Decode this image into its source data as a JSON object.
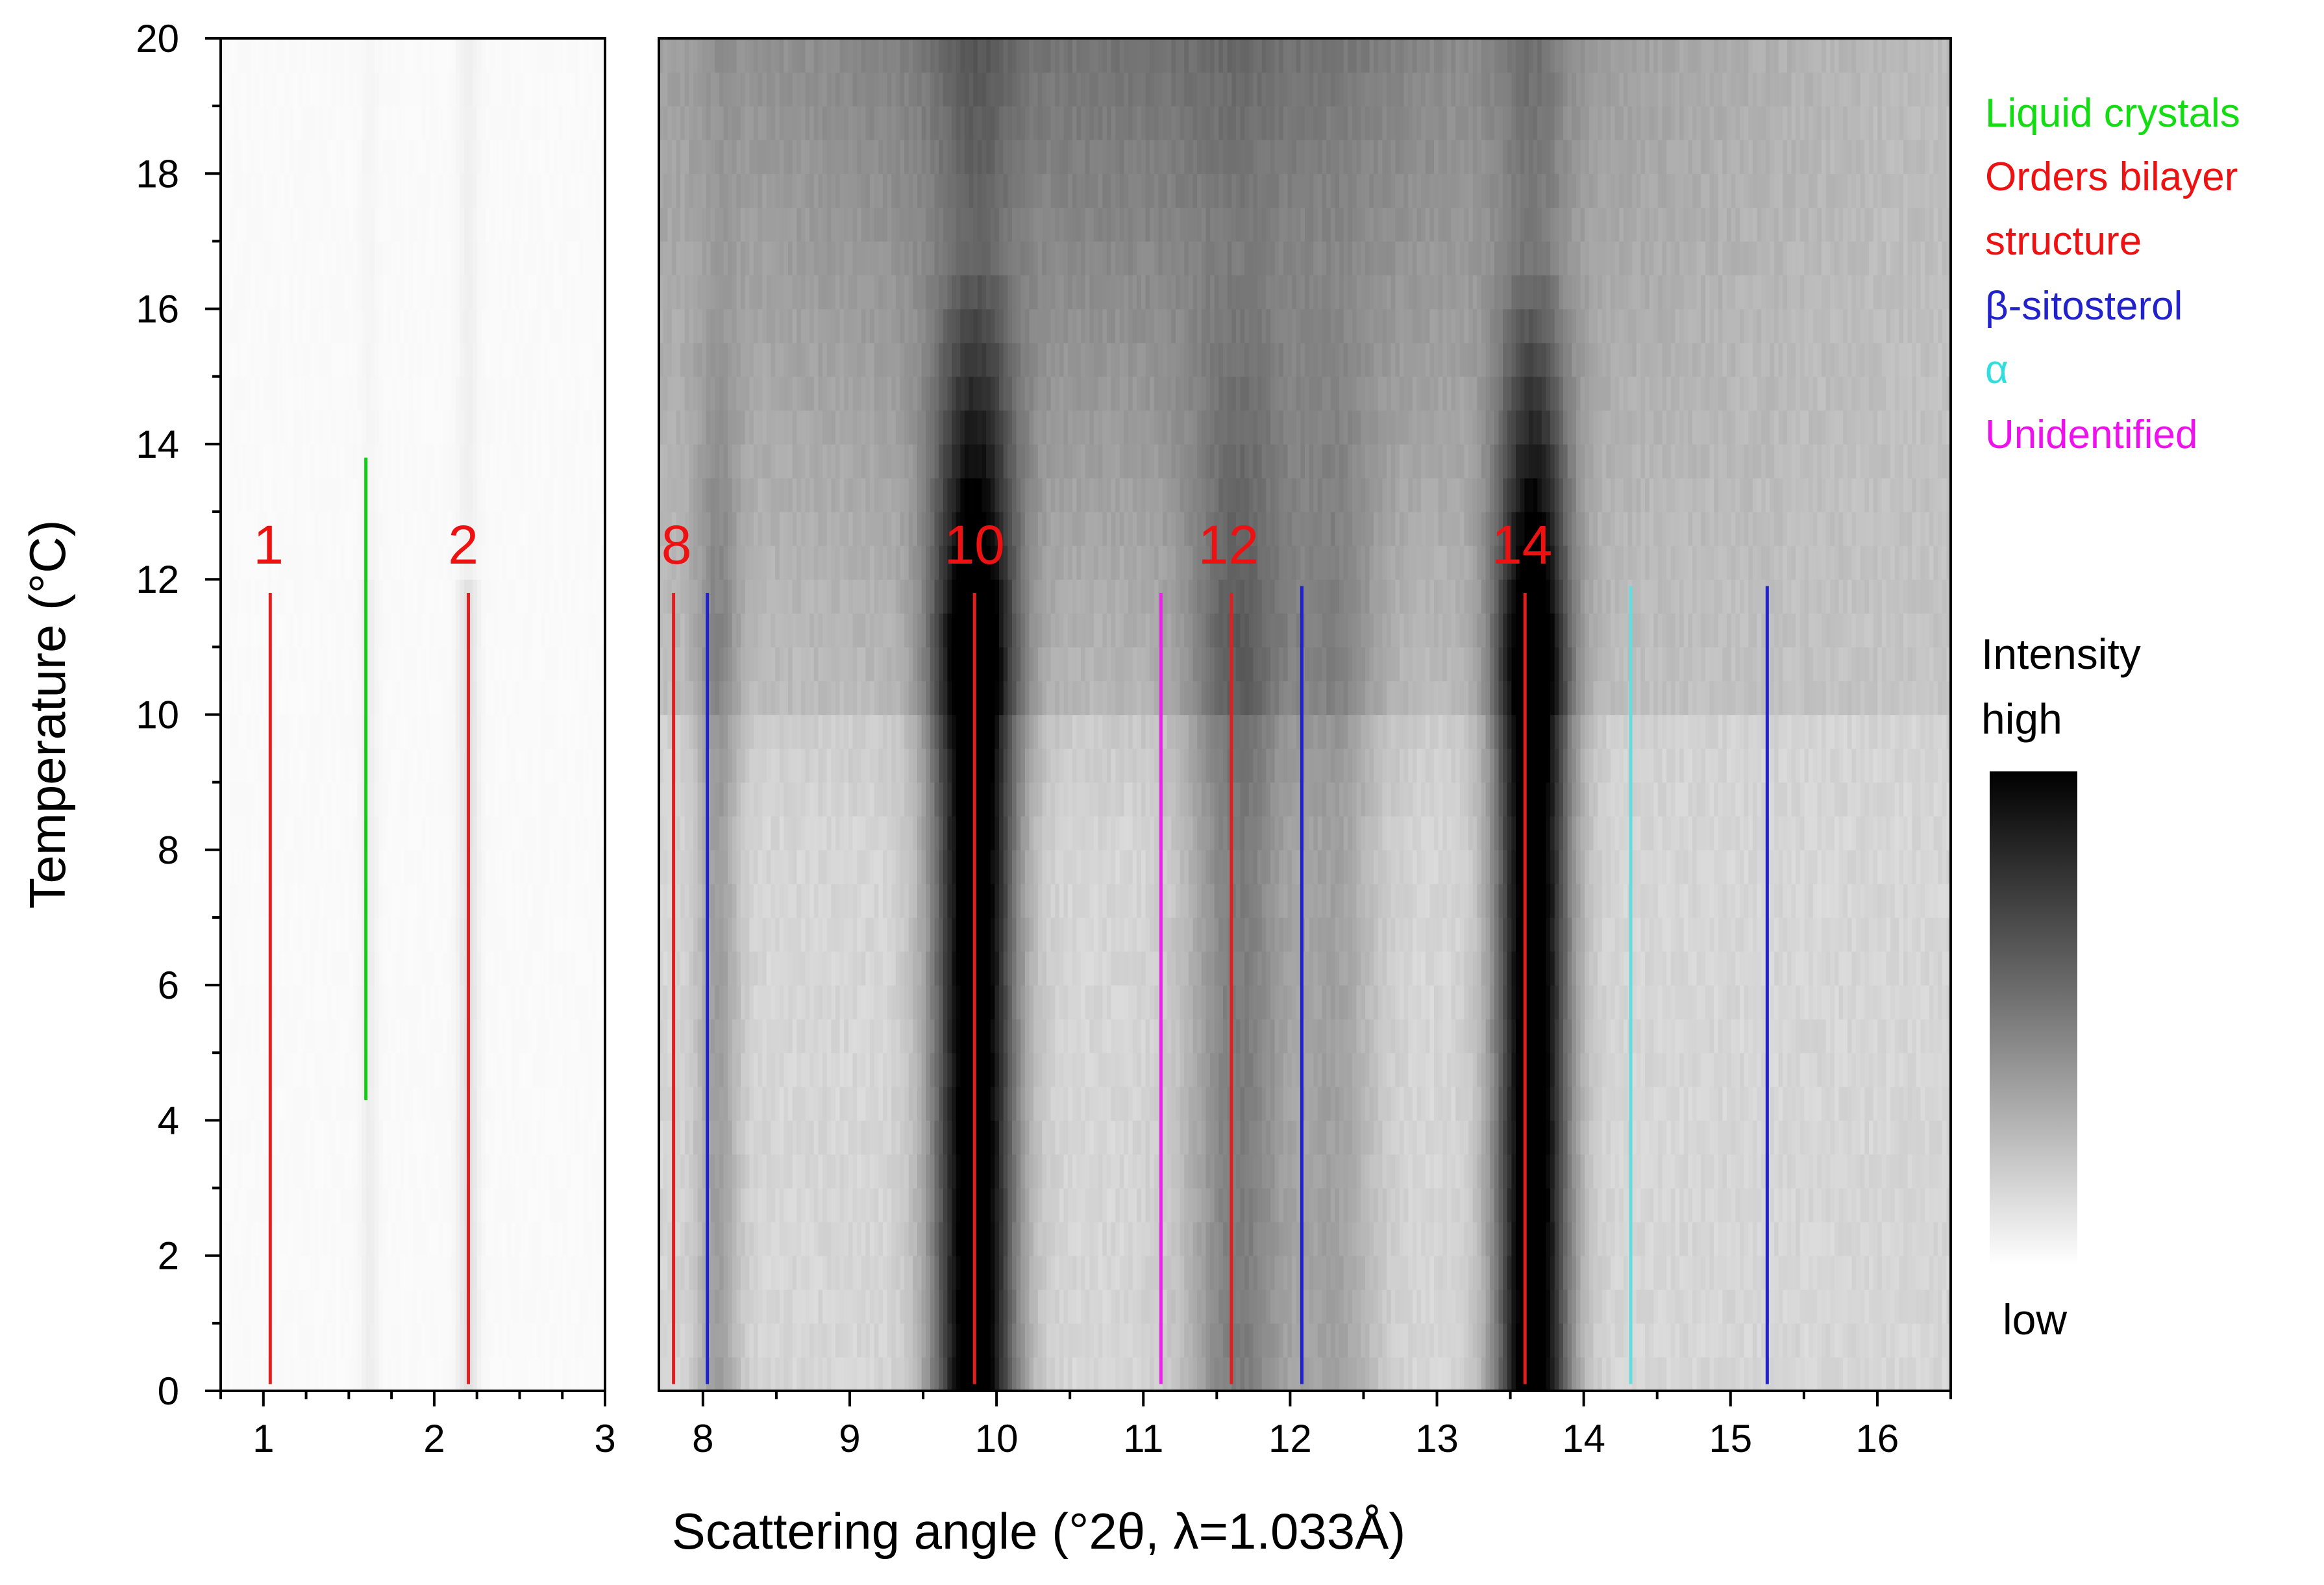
{
  "chart_data": {
    "type": "heatmap",
    "xlabel": "Scattering angle (°2θ, λ=1.033Å)",
    "ylabel": "Temperature (°C)",
    "ylim": [
      0,
      20
    ],
    "y_ticks": [
      "0",
      "2",
      "4",
      "6",
      "8",
      "10",
      "12",
      "14",
      "16",
      "18",
      "20"
    ],
    "panels": [
      {
        "name": "left",
        "xlim": [
          0.75,
          3.0
        ],
        "x_ticks": [
          "1",
          "2",
          "3"
        ],
        "intensity_peaks": [
          {
            "x": 1.62,
            "width": 0.05,
            "strength": 0.05
          },
          {
            "x": 2.2,
            "width": 0.06,
            "strength": 0.1
          }
        ],
        "reference_lines": [
          {
            "x": 1.04,
            "y": [
              0.1,
              11.8
            ],
            "class": "Orders bilayer structure",
            "color": "#e02020"
          },
          {
            "x": 2.2,
            "y": [
              0.1,
              11.8
            ],
            "class": "Orders bilayer structure",
            "color": "#e02020"
          },
          {
            "x": 1.6,
            "y": [
              4.3,
              13.8
            ],
            "class": "Liquid crystals",
            "color": "#11cc11"
          }
        ],
        "peak_labels": [
          {
            "text": "1",
            "x": 1.03
          },
          {
            "text": "2",
            "x": 2.17
          }
        ]
      },
      {
        "name": "right",
        "xlim": [
          7.7,
          16.5
        ],
        "x_ticks": [
          "8",
          "9",
          "10",
          "11",
          "12",
          "13",
          "14",
          "15",
          "16"
        ],
        "intensity_peaks": [
          {
            "x": 9.85,
            "width": 0.28,
            "strength": 0.97
          },
          {
            "x": 13.65,
            "width": 0.25,
            "strength": 0.97
          },
          {
            "x": 11.65,
            "width": 0.35,
            "strength": 0.35
          },
          {
            "x": 8.1,
            "width": 0.15,
            "strength": 0.22
          },
          {
            "x": 12.3,
            "width": 0.3,
            "strength": 0.2
          }
        ],
        "reference_lines": [
          {
            "x": 7.8,
            "y": [
              0.1,
              11.8
            ],
            "class": "Orders bilayer structure",
            "color": "#e02020"
          },
          {
            "x": 9.85,
            "y": [
              0.1,
              11.8
            ],
            "class": "Orders bilayer structure",
            "color": "#e02020"
          },
          {
            "x": 11.6,
            "y": [
              0.1,
              11.8
            ],
            "class": "Orders bilayer structure",
            "color": "#e02020"
          },
          {
            "x": 13.6,
            "y": [
              0.1,
              11.8
            ],
            "class": "Orders bilayer structure",
            "color": "#e02020"
          },
          {
            "x": 8.03,
            "y": [
              0.1,
              11.8
            ],
            "class": "β-sitosterol",
            "color": "#2222cc"
          },
          {
            "x": 12.08,
            "y": [
              0.1,
              11.9
            ],
            "class": "β-sitosterol",
            "color": "#2222cc"
          },
          {
            "x": 15.25,
            "y": [
              0.1,
              11.9
            ],
            "class": "β-sitosterol",
            "color": "#2222cc"
          },
          {
            "x": 14.32,
            "y": [
              0.1,
              11.9
            ],
            "class": "α",
            "color": "#66dddd"
          },
          {
            "x": 11.12,
            "y": [
              0.1,
              11.8
            ],
            "class": "Unidentified",
            "color": "#ee22ee"
          }
        ],
        "peak_labels": [
          {
            "text": "8",
            "x": 7.82
          },
          {
            "text": "10",
            "x": 9.85
          },
          {
            "text": "12",
            "x": 11.58
          },
          {
            "text": "14",
            "x": 13.58
          }
        ]
      }
    ],
    "legend": {
      "position": "top-right",
      "entries": [
        {
          "label": "Liquid crystals",
          "color": "#11dd11"
        },
        {
          "label": "Orders bilayer structure",
          "color": "#ee1111"
        },
        {
          "label": "β-sitosterol",
          "color": "#2222cc"
        },
        {
          "label": "α",
          "color": "#33dddd"
        },
        {
          "label": "Unidentified",
          "color": "#ee11ee"
        }
      ]
    },
    "colorbar": {
      "title": "Intensity",
      "high_label": "high",
      "low_label": "low"
    },
    "peak_label_color": "#ee1111"
  }
}
